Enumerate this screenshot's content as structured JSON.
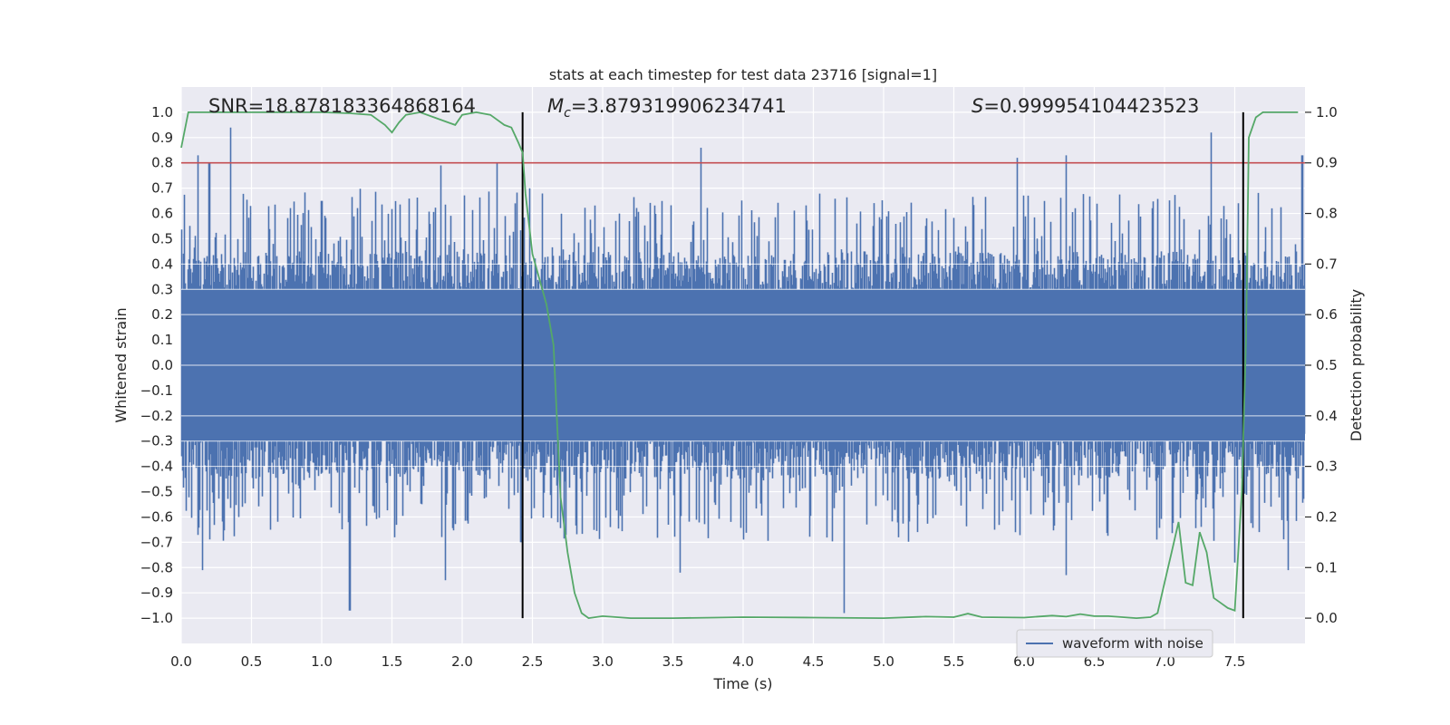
{
  "chart_data": {
    "type": "line",
    "title": "stats at each timestep for test data 23716 [signal=1]",
    "xlabel": "Time (s)",
    "ylabel": "Whitened strain",
    "y2label": "Detection probability",
    "xlim": [
      0.0,
      8.0
    ],
    "ylim": [
      -1.1,
      1.1
    ],
    "y2lim": [
      -0.05,
      1.05
    ],
    "xticks": [
      0.0,
      0.5,
      1.0,
      1.5,
      2.0,
      2.5,
      3.0,
      3.5,
      4.0,
      4.5,
      5.0,
      5.5,
      6.0,
      6.5,
      7.0,
      7.5
    ],
    "xtick_labels": [
      "0.0",
      "0.5",
      "1.0",
      "1.5",
      "2.0",
      "2.5",
      "3.0",
      "3.5",
      "4.0",
      "4.5",
      "5.0",
      "5.5",
      "6.0",
      "6.5",
      "7.0",
      "7.5"
    ],
    "yticks": [
      1.0,
      0.9,
      0.8,
      0.7,
      0.6,
      0.5,
      0.4,
      0.3,
      0.2,
      0.1,
      0.0,
      -0.1,
      -0.2,
      -0.3,
      -0.4,
      -0.5,
      -0.6,
      -0.7,
      -0.8,
      -0.9,
      -1.0
    ],
    "ytick_labels": [
      "1.0",
      "0.9",
      "0.8",
      "0.7",
      "0.6",
      "0.5",
      "0.4",
      "0.3",
      "0.2",
      "0.1",
      "0.0",
      "−0.1",
      "−0.2",
      "−0.3",
      "−0.4",
      "−0.5",
      "−0.6",
      "−0.7",
      "−0.8",
      "−0.9",
      "−1.0"
    ],
    "y2ticks": [
      1.0,
      0.9,
      0.8,
      0.7,
      0.6,
      0.5,
      0.4,
      0.3,
      0.2,
      0.1,
      0.0
    ],
    "y2tick_labels": [
      "1.0",
      "0.9",
      "0.8",
      "0.7",
      "0.6",
      "0.5",
      "0.4",
      "0.3",
      "0.2",
      "0.1",
      "0.0"
    ],
    "annotations": {
      "snr": "SNR=18.878183364868164",
      "mc_symbol": "M",
      "mc_sub": "c",
      "mc_value": "=3.879319906234741",
      "s_symbol": "S",
      "s_value": "=0.999954104423523"
    },
    "threshold": {
      "value": 0.9,
      "axis": "right",
      "color": "#c44e52"
    },
    "event_lines": {
      "x": [
        2.43,
        7.56
      ],
      "color": "#000000"
    },
    "colors": {
      "waveform": "#4c72b0",
      "probability": "#55a868",
      "background": "#eaeaf2",
      "grid": "#ffffff"
    },
    "series": [
      {
        "name": "waveform with noise",
        "axis": "left",
        "style": "dense-noise",
        "envelope_typical": 0.4,
        "spike_peaks_top": [
          [
            0.12,
            0.83
          ],
          [
            0.2,
            0.8
          ],
          [
            0.35,
            0.94
          ],
          [
            1.0,
            0.65
          ],
          [
            1.85,
            0.79
          ],
          [
            2.25,
            0.8
          ],
          [
            3.7,
            0.86
          ],
          [
            5.95,
            0.82
          ],
          [
            6.3,
            0.83
          ],
          [
            7.33,
            0.92
          ],
          [
            7.98,
            0.83
          ]
        ],
        "spike_peaks_bottom": [
          [
            0.15,
            -0.81
          ],
          [
            1.2,
            -0.97
          ],
          [
            1.88,
            -0.85
          ],
          [
            2.42,
            -0.7
          ],
          [
            3.55,
            -0.82
          ],
          [
            4.72,
            -0.98
          ],
          [
            6.3,
            -0.83
          ],
          [
            7.5,
            -0.78
          ],
          [
            7.88,
            -0.81
          ]
        ]
      },
      {
        "name": "detection probability",
        "axis": "right",
        "x": [
          0.0,
          0.05,
          0.1,
          0.2,
          0.4,
          0.6,
          0.8,
          1.0,
          1.2,
          1.35,
          1.4,
          1.45,
          1.5,
          1.55,
          1.6,
          1.7,
          1.8,
          1.9,
          1.95,
          2.0,
          2.1,
          2.2,
          2.25,
          2.3,
          2.35,
          2.4,
          2.43,
          2.45,
          2.5,
          2.55,
          2.6,
          2.65,
          2.7,
          2.75,
          2.8,
          2.85,
          2.9,
          3.0,
          3.2,
          3.5,
          3.8,
          4.0,
          4.5,
          5.0,
          5.3,
          5.5,
          5.6,
          5.7,
          6.0,
          6.2,
          6.3,
          6.4,
          6.5,
          6.6,
          6.8,
          6.9,
          6.95,
          7.0,
          7.05,
          7.1,
          7.15,
          7.2,
          7.25,
          7.3,
          7.35,
          7.4,
          7.45,
          7.5,
          7.55,
          7.58,
          7.6,
          7.65,
          7.7,
          7.75,
          7.8,
          7.9,
          7.95
        ],
        "y": [
          0.93,
          1.0,
          1.0,
          1.0,
          1.0,
          1.0,
          1.0,
          1.0,
          0.998,
          0.995,
          0.985,
          0.975,
          0.96,
          0.98,
          0.995,
          1.0,
          0.99,
          0.98,
          0.975,
          0.995,
          1.0,
          0.995,
          0.985,
          0.975,
          0.97,
          0.94,
          0.92,
          0.84,
          0.72,
          0.67,
          0.62,
          0.54,
          0.24,
          0.13,
          0.05,
          0.01,
          0.0,
          0.004,
          0.0,
          0.0,
          0.001,
          0.002,
          0.001,
          0.0,
          0.003,
          0.002,
          0.009,
          0.002,
          0.001,
          0.005,
          0.003,
          0.008,
          0.004,
          0.004,
          0.0,
          0.002,
          0.01,
          0.07,
          0.13,
          0.19,
          0.07,
          0.065,
          0.17,
          0.13,
          0.04,
          0.03,
          0.02,
          0.015,
          0.25,
          0.55,
          0.95,
          0.99,
          1.0,
          1.0,
          1.0,
          1.0,
          1.0
        ]
      }
    ],
    "legend": {
      "labels": [
        "waveform with noise"
      ],
      "location": "lower-center-right"
    }
  }
}
